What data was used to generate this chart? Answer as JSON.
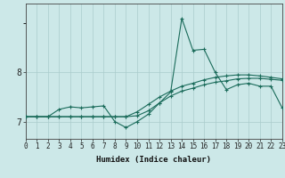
{
  "xlabel": "Humidex (Indice chaleur)",
  "bg_color": "#cce8e8",
  "grid_color_major": "#aacccc",
  "grid_color_minor": "#bbdddd",
  "line_color": "#1a6b5a",
  "x_ticks": [
    0,
    1,
    2,
    3,
    4,
    5,
    6,
    7,
    8,
    9,
    10,
    11,
    12,
    13,
    14,
    15,
    16,
    17,
    18,
    19,
    20,
    21,
    22,
    23
  ],
  "y_ticks": [
    7,
    8
  ],
  "xlim": [
    0,
    23
  ],
  "ylim": [
    6.65,
    9.4
  ],
  "line1_y": [
    7.1,
    7.1,
    7.1,
    7.25,
    7.3,
    7.28,
    7.3,
    7.32,
    7.0,
    6.88,
    7.0,
    7.15,
    7.38,
    7.6,
    9.1,
    8.45,
    8.47,
    8.0,
    7.65,
    7.75,
    7.78,
    7.72,
    7.72,
    7.28
  ],
  "line2_y": [
    7.1,
    7.1,
    7.1,
    7.1,
    7.1,
    7.1,
    7.1,
    7.1,
    7.1,
    7.1,
    7.12,
    7.22,
    7.38,
    7.52,
    7.62,
    7.68,
    7.75,
    7.8,
    7.83,
    7.87,
    7.88,
    7.88,
    7.86,
    7.84
  ],
  "line3_y": [
    7.1,
    7.1,
    7.1,
    7.1,
    7.1,
    7.1,
    7.1,
    7.1,
    7.1,
    7.1,
    7.2,
    7.35,
    7.5,
    7.62,
    7.72,
    7.78,
    7.85,
    7.9,
    7.93,
    7.95,
    7.95,
    7.93,
    7.9,
    7.87
  ],
  "tick_fontsize": 5.5,
  "xlabel_fontsize": 6.5,
  "ylabel_fontsize": 7
}
